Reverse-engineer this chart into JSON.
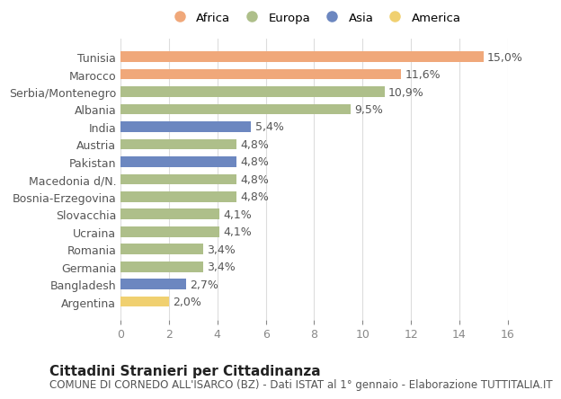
{
  "countries": [
    "Tunisia",
    "Marocco",
    "Serbia/Montenegro",
    "Albania",
    "India",
    "Austria",
    "Pakistan",
    "Macedonia d/N.",
    "Bosnia-Erzegovina",
    "Slovacchia",
    "Ucraina",
    "Romania",
    "Germania",
    "Bangladesh",
    "Argentina"
  ],
  "values": [
    15.0,
    11.6,
    10.9,
    9.5,
    5.4,
    4.8,
    4.8,
    4.8,
    4.8,
    4.1,
    4.1,
    3.4,
    3.4,
    2.7,
    2.0
  ],
  "labels": [
    "15,0%",
    "11,6%",
    "10,9%",
    "9,5%",
    "5,4%",
    "4,8%",
    "4,8%",
    "4,8%",
    "4,8%",
    "4,1%",
    "4,1%",
    "3,4%",
    "3,4%",
    "2,7%",
    "2,0%"
  ],
  "continents": [
    "Africa",
    "Africa",
    "Europa",
    "Europa",
    "Asia",
    "Europa",
    "Asia",
    "Europa",
    "Europa",
    "Europa",
    "Europa",
    "Europa",
    "Europa",
    "Asia",
    "America"
  ],
  "colors": {
    "Africa": "#F0A87A",
    "Europa": "#AEBF8A",
    "Asia": "#6C87C0",
    "America": "#F0D070"
  },
  "legend_order": [
    "Africa",
    "Europa",
    "Asia",
    "America"
  ],
  "xlim": [
    0,
    16
  ],
  "xticks": [
    0,
    2,
    4,
    6,
    8,
    10,
    12,
    14,
    16
  ],
  "title": "Cittadini Stranieri per Cittadinanza",
  "subtitle": "COMUNE DI CORNEDO ALL'ISARCO (BZ) - Dati ISTAT al 1° gennaio - Elaborazione TUTTITALIA.IT",
  "background_color": "#ffffff",
  "bar_height": 0.6,
  "title_fontsize": 11,
  "subtitle_fontsize": 8.5,
  "tick_fontsize": 9,
  "label_fontsize": 9,
  "legend_fontsize": 9.5
}
